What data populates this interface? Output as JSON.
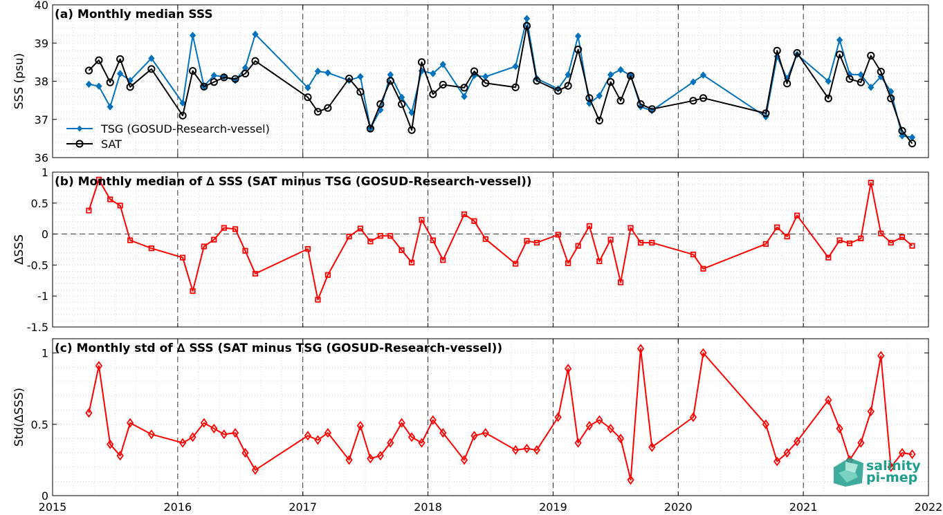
{
  "figure": {
    "xticks": [
      "2015",
      "2016",
      "2017",
      "2018",
      "2019",
      "2020",
      "2021",
      "2022"
    ],
    "xtick_values": [
      2015,
      2016,
      2017,
      2018,
      2019,
      2020,
      2021,
      2022
    ],
    "xlim": [
      2015,
      2022
    ],
    "logo": {
      "line1": "salinity",
      "line2": "pi-mep",
      "color": "#1e9e8c"
    }
  },
  "colors": {
    "tsg": "#0072BD",
    "sat": "#000000",
    "delta": "#FF0000",
    "grid": "#d0d0d0"
  },
  "chart_data": [
    {
      "type": "line",
      "title": "(a) Monthly median SSS",
      "ylabel": "SSS (psu)",
      "ylim": [
        36,
        40
      ],
      "yticks": [
        36,
        37,
        38,
        39,
        40
      ],
      "grid": true,
      "legend_position": "lower-left",
      "series": [
        {
          "name": "TSG (GOSUD-Research-vessel)",
          "color": "#0072BD",
          "marker": "diamond-filled",
          "points": [
            [
              2015.29,
              37.92
            ],
            [
              2015.37,
              37.87
            ],
            [
              2015.46,
              37.33
            ],
            [
              2015.54,
              38.2
            ],
            [
              2015.62,
              38.02
            ],
            [
              2015.79,
              38.6
            ],
            [
              2016.04,
              37.43
            ],
            [
              2016.12,
              39.2
            ],
            [
              2016.21,
              37.87
            ],
            [
              2016.29,
              38.15
            ],
            [
              2016.37,
              38.12
            ],
            [
              2016.46,
              38.02
            ],
            [
              2016.54,
              38.35
            ],
            [
              2016.62,
              39.23
            ],
            [
              2017.04,
              37.83
            ],
            [
              2017.12,
              38.26
            ],
            [
              2017.2,
              38.22
            ],
            [
              2017.37,
              38.02
            ],
            [
              2017.46,
              38.12
            ],
            [
              2017.54,
              36.77
            ],
            [
              2017.62,
              37.25
            ],
            [
              2017.7,
              38.17
            ],
            [
              2017.79,
              37.58
            ],
            [
              2017.87,
              37.18
            ],
            [
              2017.95,
              38.27
            ],
            [
              2018.04,
              38.2
            ],
            [
              2018.12,
              38.44
            ],
            [
              2018.29,
              37.6
            ],
            [
              2018.37,
              38.15
            ],
            [
              2018.46,
              38.12
            ],
            [
              2018.7,
              38.39
            ],
            [
              2018.79,
              39.64
            ],
            [
              2018.87,
              38.07
            ],
            [
              2019.04,
              37.8
            ],
            [
              2019.12,
              38.17
            ],
            [
              2019.2,
              39.18
            ],
            [
              2019.29,
              37.42
            ],
            [
              2019.37,
              37.62
            ],
            [
              2019.46,
              38.17
            ],
            [
              2019.54,
              38.3
            ],
            [
              2019.62,
              38.15
            ],
            [
              2019.7,
              37.33
            ],
            [
              2019.79,
              37.23
            ],
            [
              2020.12,
              37.98
            ],
            [
              2020.2,
              38.16
            ],
            [
              2020.7,
              37.07
            ],
            [
              2020.79,
              38.65
            ],
            [
              2020.87,
              38.07
            ],
            [
              2020.95,
              38.7
            ],
            [
              2021.2,
              38.0
            ],
            [
              2021.29,
              39.08
            ],
            [
              2021.37,
              38.18
            ],
            [
              2021.46,
              38.17
            ],
            [
              2021.54,
              37.84
            ],
            [
              2021.62,
              38.12
            ],
            [
              2021.7,
              37.73
            ],
            [
              2021.79,
              36.57
            ],
            [
              2021.87,
              36.53
            ]
          ]
        },
        {
          "name": "SAT",
          "color": "#000000",
          "marker": "circle-open",
          "points": [
            [
              2015.29,
              38.28
            ],
            [
              2015.37,
              38.55
            ],
            [
              2015.46,
              37.97
            ],
            [
              2015.54,
              38.58
            ],
            [
              2015.62,
              37.85
            ],
            [
              2015.79,
              38.32
            ],
            [
              2016.04,
              37.1
            ],
            [
              2016.12,
              38.27
            ],
            [
              2016.21,
              37.86
            ],
            [
              2016.29,
              37.98
            ],
            [
              2016.37,
              38.1
            ],
            [
              2016.46,
              38.06
            ],
            [
              2016.54,
              38.2
            ],
            [
              2016.62,
              38.53
            ],
            [
              2017.04,
              37.58
            ],
            [
              2017.12,
              37.2
            ],
            [
              2017.2,
              37.3
            ],
            [
              2017.37,
              38.07
            ],
            [
              2017.46,
              37.72
            ],
            [
              2017.54,
              36.76
            ],
            [
              2017.62,
              37.4
            ],
            [
              2017.7,
              38.01
            ],
            [
              2017.79,
              37.4
            ],
            [
              2017.87,
              36.72
            ],
            [
              2017.95,
              38.5
            ],
            [
              2018.04,
              37.66
            ],
            [
              2018.12,
              37.91
            ],
            [
              2018.29,
              37.83
            ],
            [
              2018.37,
              38.26
            ],
            [
              2018.46,
              37.95
            ],
            [
              2018.7,
              37.84
            ],
            [
              2018.79,
              39.45
            ],
            [
              2018.87,
              38.01
            ],
            [
              2019.04,
              37.75
            ],
            [
              2019.12,
              37.88
            ],
            [
              2019.2,
              38.83
            ],
            [
              2019.29,
              37.56
            ],
            [
              2019.37,
              36.97
            ],
            [
              2019.46,
              37.98
            ],
            [
              2019.54,
              37.49
            ],
            [
              2019.62,
              38.14
            ],
            [
              2019.7,
              37.4
            ],
            [
              2019.79,
              37.27
            ],
            [
              2020.12,
              37.49
            ],
            [
              2020.2,
              37.56
            ],
            [
              2020.7,
              37.16
            ],
            [
              2020.79,
              38.8
            ],
            [
              2020.87,
              37.94
            ],
            [
              2020.95,
              38.74
            ],
            [
              2021.2,
              37.55
            ],
            [
              2021.29,
              38.7
            ],
            [
              2021.37,
              38.06
            ],
            [
              2021.46,
              37.97
            ],
            [
              2021.54,
              38.67
            ],
            [
              2021.62,
              38.25
            ],
            [
              2021.7,
              37.55
            ],
            [
              2021.79,
              36.7
            ],
            [
              2021.87,
              36.37
            ]
          ]
        }
      ]
    },
    {
      "type": "line",
      "title": "(b) Monthly median of ∆ SSS (SAT minus TSG (GOSUD-Research-vessel))",
      "ylabel": "∆SSS",
      "ylim": [
        -1.5,
        1
      ],
      "yticks": [
        -1.5,
        -1,
        -0.5,
        0,
        0.5,
        1
      ],
      "ytick_labels": [
        "-1.5",
        "-1",
        "-0.5",
        "0",
        "0.5",
        "1"
      ],
      "zero_line": true,
      "grid": true,
      "series": [
        {
          "color": "#FF0000",
          "marker": "square-open",
          "points": [
            [
              2015.29,
              0.38
            ],
            [
              2015.37,
              0.88
            ],
            [
              2015.46,
              0.56
            ],
            [
              2015.54,
              0.46
            ],
            [
              2015.62,
              -0.1
            ],
            [
              2015.79,
              -0.23
            ],
            [
              2016.04,
              -0.38
            ],
            [
              2016.12,
              -0.92
            ],
            [
              2016.21,
              -0.2
            ],
            [
              2016.29,
              -0.09
            ],
            [
              2016.37,
              0.1
            ],
            [
              2016.46,
              0.08
            ],
            [
              2016.54,
              -0.27
            ],
            [
              2016.62,
              -0.64
            ],
            [
              2017.04,
              -0.24
            ],
            [
              2017.12,
              -1.06
            ],
            [
              2017.2,
              -0.66
            ],
            [
              2017.37,
              -0.04
            ],
            [
              2017.46,
              0.09
            ],
            [
              2017.54,
              -0.12
            ],
            [
              2017.62,
              -0.03
            ],
            [
              2017.7,
              -0.03
            ],
            [
              2017.79,
              -0.26
            ],
            [
              2017.87,
              -0.46
            ],
            [
              2017.95,
              0.23
            ],
            [
              2018.04,
              -0.1
            ],
            [
              2018.12,
              -0.42
            ],
            [
              2018.29,
              0.32
            ],
            [
              2018.37,
              0.21
            ],
            [
              2018.46,
              -0.08
            ],
            [
              2018.7,
              -0.48
            ],
            [
              2018.79,
              -0.11
            ],
            [
              2018.87,
              -0.14
            ],
            [
              2019.04,
              -0.01
            ],
            [
              2019.12,
              -0.47
            ],
            [
              2019.2,
              -0.19
            ],
            [
              2019.29,
              0.13
            ],
            [
              2019.37,
              -0.44
            ],
            [
              2019.46,
              -0.09
            ],
            [
              2019.54,
              -0.78
            ],
            [
              2019.62,
              0.1
            ],
            [
              2019.7,
              -0.14
            ],
            [
              2019.79,
              -0.14
            ],
            [
              2020.12,
              -0.33
            ],
            [
              2020.2,
              -0.56
            ],
            [
              2020.7,
              -0.16
            ],
            [
              2020.79,
              0.11
            ],
            [
              2020.87,
              -0.04
            ],
            [
              2020.95,
              0.3
            ],
            [
              2021.2,
              -0.38
            ],
            [
              2021.29,
              -0.1
            ],
            [
              2021.37,
              -0.15
            ],
            [
              2021.46,
              -0.07
            ],
            [
              2021.54,
              0.83
            ],
            [
              2021.62,
              0.01
            ],
            [
              2021.7,
              -0.14
            ],
            [
              2021.79,
              -0.05
            ],
            [
              2021.87,
              -0.19
            ]
          ]
        }
      ]
    },
    {
      "type": "line",
      "title": "(c) Monthly std of ∆ SSS (SAT minus TSG (GOSUD-Research-vessel))",
      "ylabel": "Std(∆SSS)",
      "ylim": [
        0,
        1.1
      ],
      "yticks": [
        0,
        0.5,
        1
      ],
      "ytick_labels": [
        "0",
        "0.5",
        "1"
      ],
      "grid": true,
      "series": [
        {
          "color": "#FF0000",
          "marker": "diamond-open",
          "points": [
            [
              2015.29,
              0.58
            ],
            [
              2015.37,
              0.91
            ],
            [
              2015.46,
              0.36
            ],
            [
              2015.54,
              0.28
            ],
            [
              2015.62,
              0.51
            ],
            [
              2015.79,
              0.43
            ],
            [
              2016.04,
              0.37
            ],
            [
              2016.12,
              0.41
            ],
            [
              2016.21,
              0.51
            ],
            [
              2016.29,
              0.47
            ],
            [
              2016.37,
              0.43
            ],
            [
              2016.46,
              0.44
            ],
            [
              2016.54,
              0.3
            ],
            [
              2016.62,
              0.18
            ],
            [
              2017.04,
              0.42
            ],
            [
              2017.12,
              0.39
            ],
            [
              2017.2,
              0.44
            ],
            [
              2017.37,
              0.25
            ],
            [
              2017.46,
              0.49
            ],
            [
              2017.54,
              0.26
            ],
            [
              2017.62,
              0.28
            ],
            [
              2017.7,
              0.37
            ],
            [
              2017.79,
              0.51
            ],
            [
              2017.87,
              0.41
            ],
            [
              2017.95,
              0.37
            ],
            [
              2018.04,
              0.53
            ],
            [
              2018.12,
              0.44
            ],
            [
              2018.29,
              0.25
            ],
            [
              2018.37,
              0.42
            ],
            [
              2018.46,
              0.44
            ],
            [
              2018.7,
              0.32
            ],
            [
              2018.79,
              0.33
            ],
            [
              2018.87,
              0.32
            ],
            [
              2019.04,
              0.55
            ],
            [
              2019.12,
              0.89
            ],
            [
              2019.2,
              0.37
            ],
            [
              2019.29,
              0.49
            ],
            [
              2019.37,
              0.53
            ],
            [
              2019.46,
              0.47
            ],
            [
              2019.54,
              0.4
            ],
            [
              2019.62,
              0.11
            ],
            [
              2019.7,
              1.03
            ],
            [
              2019.79,
              0.34
            ],
            [
              2020.12,
              0.55
            ],
            [
              2020.2,
              1.0
            ],
            [
              2020.7,
              0.5
            ],
            [
              2020.79,
              0.24
            ],
            [
              2020.87,
              0.3
            ],
            [
              2020.95,
              0.38
            ],
            [
              2021.2,
              0.67
            ],
            [
              2021.29,
              0.47
            ],
            [
              2021.37,
              0.25
            ],
            [
              2021.46,
              0.37
            ],
            [
              2021.54,
              0.59
            ],
            [
              2021.62,
              0.98
            ],
            [
              2021.7,
              0.2
            ],
            [
              2021.79,
              0.3
            ],
            [
              2021.87,
              0.29
            ]
          ]
        }
      ]
    }
  ]
}
